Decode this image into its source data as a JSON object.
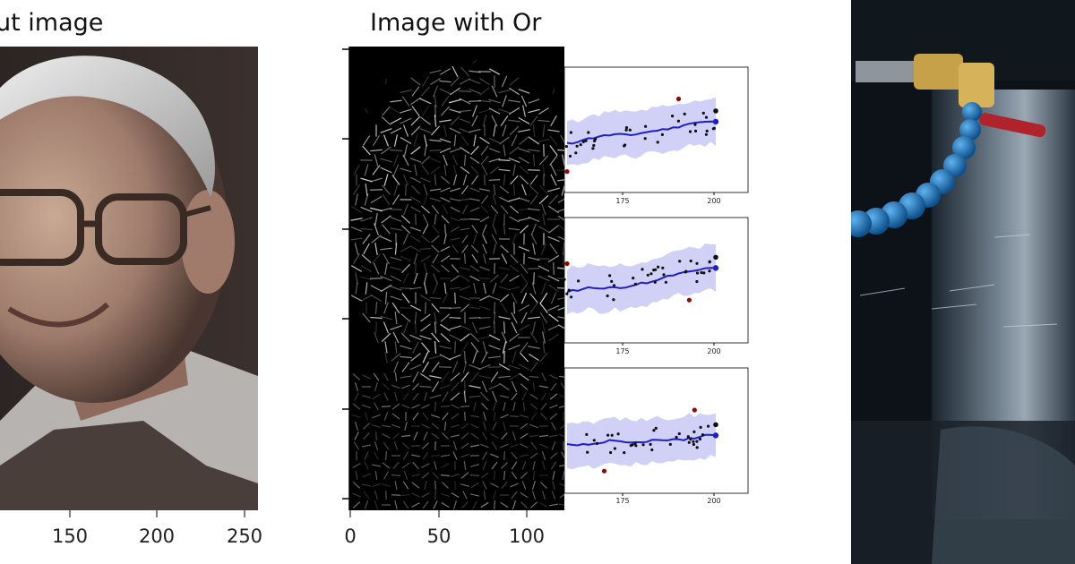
{
  "panels": {
    "face": {
      "title": "ut image",
      "x_ticks": [
        "150",
        "200",
        "250"
      ]
    },
    "hog": {
      "title": "Image with Or",
      "x_ticks": [
        "0",
        "50",
        "100"
      ]
    },
    "forecast": {
      "subplots": [
        {
          "x_ticks": [
            "175",
            "200"
          ]
        },
        {
          "x_ticks": [
            "175",
            "200"
          ]
        },
        {
          "x_ticks": [
            "175",
            "200"
          ]
        }
      ]
    },
    "photo": {}
  },
  "colors": {
    "band": "#c9c9f6",
    "line": "#1f1fc4",
    "dot": "#111111",
    "outlier": "#8b0a0a",
    "hose": "#1b6db3"
  }
}
